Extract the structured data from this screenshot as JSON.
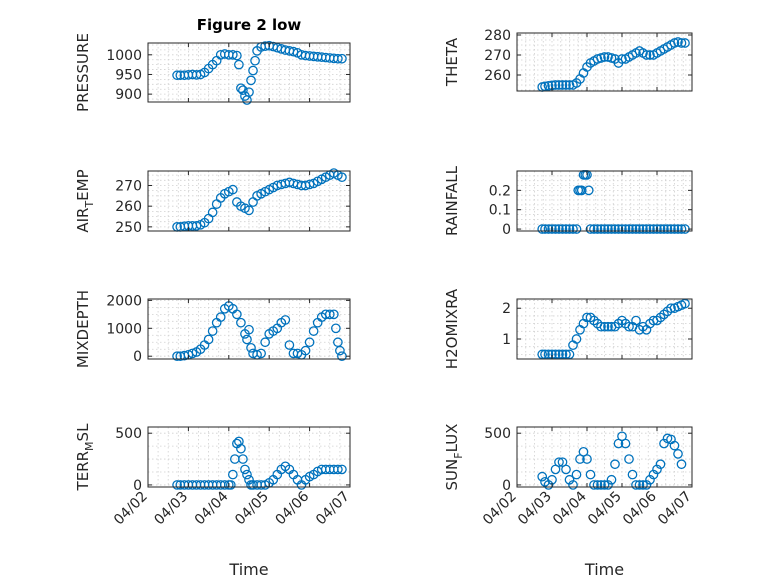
{
  "figure": {
    "title": "Figure 2 low"
  },
  "colors": {
    "marker": "#0072BD",
    "axis": "#262626",
    "grid": "#d0d0d0"
  },
  "chart_data": [
    {
      "type": "scatter",
      "title": "Figure 2 low",
      "ylabel": "PRESSURE",
      "xlim": [
        0,
        5
      ],
      "ylim": [
        880,
        1030
      ],
      "yticks": [
        900,
        950,
        1000
      ],
      "xticks": [
        0,
        1,
        2,
        3,
        4,
        5
      ],
      "xticklabels": [],
      "xlabel": "",
      "grid": true,
      "series": [
        {
          "x": [
            0.72,
            0.8,
            0.9,
            1.0,
            1.1,
            1.2,
            1.3,
            1.4,
            1.5,
            1.6,
            1.7,
            1.8,
            1.9,
            2.0,
            2.1,
            2.2,
            2.25,
            2.3,
            2.35,
            2.4,
            2.45,
            2.5,
            2.55,
            2.6,
            2.65,
            2.7,
            2.8,
            2.9,
            3.0,
            3.1,
            3.2,
            3.3,
            3.4,
            3.5,
            3.6,
            3.7,
            3.8,
            3.9,
            4.0,
            4.1,
            4.2,
            4.3,
            4.4,
            4.5,
            4.6,
            4.7,
            4.8
          ],
          "y": [
            948,
            948,
            948,
            949,
            950,
            949,
            950,
            955,
            965,
            975,
            985,
            1000,
            1002,
            1000,
            1000,
            998,
            975,
            915,
            910,
            895,
            885,
            905,
            935,
            960,
            985,
            1010,
            1020,
            1022,
            1023,
            1021,
            1018,
            1015,
            1012,
            1010,
            1008,
            1005,
            1000,
            998,
            997,
            996,
            995,
            994,
            993,
            992,
            991,
            990,
            990
          ]
        }
      ]
    },
    {
      "type": "scatter",
      "title": "",
      "ylabel": "THETA",
      "xlim": [
        0,
        5
      ],
      "ylim": [
        252,
        281
      ],
      "yticks": [
        260,
        270,
        280
      ],
      "xticks": [
        0,
        1,
        2,
        3,
        4,
        5
      ],
      "xticklabels": [],
      "xlabel": "",
      "grid": true,
      "series": [
        {
          "x": [
            0.72,
            0.8,
            0.9,
            1.0,
            1.1,
            1.2,
            1.3,
            1.4,
            1.5,
            1.6,
            1.7,
            1.8,
            1.9,
            2.0,
            2.1,
            2.2,
            2.3,
            2.4,
            2.5,
            2.6,
            2.7,
            2.8,
            2.9,
            3.0,
            3.1,
            3.2,
            3.3,
            3.4,
            3.5,
            3.6,
            3.7,
            3.8,
            3.9,
            4.0,
            4.1,
            4.2,
            4.3,
            4.4,
            4.5,
            4.6,
            4.7,
            4.8
          ],
          "y": [
            254,
            254.3,
            254.6,
            254.8,
            255,
            255,
            255,
            255,
            255,
            255,
            256,
            258,
            261,
            264,
            266,
            267,
            268,
            268.5,
            269,
            269,
            268.5,
            268,
            266,
            268,
            268,
            269,
            270,
            271,
            272,
            271,
            270,
            270,
            270,
            271,
            272,
            273,
            274,
            275,
            276,
            276.5,
            276,
            276
          ]
        }
      ]
    },
    {
      "type": "scatter",
      "title": "",
      "ylabel": "AIR_TEMP",
      "xlim": [
        0,
        5
      ],
      "ylim": [
        248,
        277
      ],
      "yticks": [
        250,
        260,
        270
      ],
      "xticks": [
        0,
        1,
        2,
        3,
        4,
        5
      ],
      "xticklabels": [],
      "xlabel": "",
      "grid": true,
      "series": [
        {
          "x": [
            0.72,
            0.8,
            0.9,
            1.0,
            1.1,
            1.2,
            1.3,
            1.4,
            1.5,
            1.6,
            1.7,
            1.8,
            1.9,
            2.0,
            2.1,
            2.2,
            2.3,
            2.4,
            2.5,
            2.6,
            2.7,
            2.8,
            2.9,
            3.0,
            3.1,
            3.2,
            3.3,
            3.4,
            3.5,
            3.6,
            3.7,
            3.8,
            3.9,
            4.0,
            4.1,
            4.2,
            4.3,
            4.4,
            4.5,
            4.6,
            4.7,
            4.8
          ],
          "y": [
            250,
            250,
            250.3,
            250.5,
            250.5,
            250.5,
            251,
            252,
            254,
            257,
            261,
            264,
            266,
            267,
            268,
            262,
            260,
            259,
            258,
            262,
            265,
            266,
            267,
            268,
            269,
            270,
            270.5,
            271,
            271.5,
            271,
            270.5,
            270,
            270,
            270.5,
            271,
            272,
            273,
            274,
            275,
            276,
            275,
            274
          ]
        }
      ]
    },
    {
      "type": "scatter",
      "title": "",
      "ylabel": "RAINFALL",
      "xlim": [
        0,
        5
      ],
      "ylim": [
        -0.01,
        0.3
      ],
      "yticks": [
        0,
        0.1,
        0.2
      ],
      "xticks": [
        0,
        1,
        2,
        3,
        4,
        5
      ],
      "xticklabels": [],
      "xlabel": "",
      "grid": true,
      "series": [
        {
          "x": [
            0.72,
            0.8,
            0.9,
            1.0,
            1.1,
            1.2,
            1.3,
            1.4,
            1.5,
            1.6,
            1.7,
            1.75,
            1.8,
            1.85,
            1.9,
            1.95,
            2.0,
            2.05,
            2.1,
            2.2,
            2.3,
            2.4,
            2.5,
            2.6,
            2.7,
            2.8,
            2.9,
            3.0,
            3.1,
            3.2,
            3.3,
            3.4,
            3.5,
            3.6,
            3.7,
            3.8,
            3.9,
            4.0,
            4.1,
            4.2,
            4.3,
            4.4,
            4.5,
            4.6,
            4.7,
            4.8
          ],
          "y": [
            0,
            0,
            0,
            0,
            0,
            0,
            0,
            0,
            0,
            0,
            0,
            0.2,
            0.2,
            0.2,
            0.28,
            0.28,
            0.28,
            0.2,
            0,
            0,
            0,
            0,
            0,
            0,
            0,
            0,
            0,
            0,
            0,
            0,
            0,
            0,
            0,
            0,
            0,
            0,
            0,
            0,
            0,
            0,
            0,
            0,
            0,
            0,
            0,
            0
          ]
        }
      ]
    },
    {
      "type": "scatter",
      "title": "",
      "ylabel": "MIXDEPTH",
      "xlim": [
        0,
        5
      ],
      "ylim": [
        -100,
        2050
      ],
      "yticks": [
        0,
        1000,
        2000
      ],
      "xticks": [
        0,
        1,
        2,
        3,
        4,
        5
      ],
      "xticklabels": [],
      "xlabel": "",
      "grid": true,
      "series": [
        {
          "x": [
            0.72,
            0.8,
            0.9,
            1.0,
            1.1,
            1.2,
            1.3,
            1.4,
            1.5,
            1.6,
            1.7,
            1.8,
            1.9,
            2.0,
            2.1,
            2.2,
            2.3,
            2.4,
            2.45,
            2.5,
            2.55,
            2.6,
            2.7,
            2.8,
            2.9,
            3.0,
            3.1,
            3.2,
            3.3,
            3.4,
            3.5,
            3.6,
            3.7,
            3.8,
            3.9,
            4.0,
            4.1,
            4.2,
            4.3,
            4.4,
            4.5,
            4.6,
            4.65,
            4.7,
            4.75,
            4.8
          ],
          "y": [
            0,
            0,
            20,
            50,
            100,
            150,
            250,
            400,
            600,
            900,
            1200,
            1400,
            1700,
            1800,
            1700,
            1500,
            1200,
            800,
            600,
            950,
            300,
            100,
            50,
            100,
            500,
            800,
            900,
            1000,
            1200,
            1300,
            400,
            100,
            100,
            50,
            200,
            500,
            900,
            1200,
            1400,
            1500,
            1500,
            1500,
            1000,
            500,
            200,
            0
          ]
        }
      ]
    },
    {
      "type": "scatter",
      "title": "",
      "ylabel": "H2OMIXRA",
      "xlim": [
        0,
        5
      ],
      "ylim": [
        0.35,
        2.3
      ],
      "yticks": [
        1,
        2
      ],
      "xticks": [
        0,
        1,
        2,
        3,
        4,
        5
      ],
      "xticklabels": [],
      "xlabel": "",
      "grid": true,
      "series": [
        {
          "x": [
            0.72,
            0.8,
            0.9,
            1.0,
            1.1,
            1.2,
            1.3,
            1.4,
            1.5,
            1.6,
            1.7,
            1.8,
            1.9,
            2.0,
            2.1,
            2.2,
            2.3,
            2.4,
            2.5,
            2.6,
            2.7,
            2.8,
            2.9,
            3.0,
            3.1,
            3.2,
            3.3,
            3.4,
            3.5,
            3.6,
            3.7,
            3.8,
            3.9,
            4.0,
            4.1,
            4.2,
            4.3,
            4.4,
            4.5,
            4.6,
            4.7,
            4.8
          ],
          "y": [
            0.5,
            0.5,
            0.5,
            0.5,
            0.5,
            0.5,
            0.5,
            0.5,
            0.5,
            0.8,
            1.0,
            1.3,
            1.5,
            1.7,
            1.7,
            1.6,
            1.5,
            1.4,
            1.4,
            1.4,
            1.4,
            1.4,
            1.5,
            1.6,
            1.5,
            1.4,
            1.4,
            1.6,
            1.3,
            1.4,
            1.3,
            1.5,
            1.6,
            1.6,
            1.7,
            1.8,
            1.9,
            2.0,
            2.0,
            2.05,
            2.1,
            2.15
          ]
        }
      ]
    },
    {
      "type": "scatter",
      "title": "",
      "ylabel": "TERR_MSL",
      "xlim": [
        0,
        5
      ],
      "ylim": [
        -20,
        560
      ],
      "yticks": [
        0,
        500
      ],
      "xticks": [
        0,
        1,
        2,
        3,
        4,
        5
      ],
      "xticklabels": [
        "04/02",
        "04/03",
        "04/04",
        "04/05",
        "04/06",
        "04/07"
      ],
      "xlabel": "Time",
      "grid": true,
      "series": [
        {
          "x": [
            0.72,
            0.8,
            0.9,
            1.0,
            1.1,
            1.2,
            1.3,
            1.4,
            1.5,
            1.6,
            1.7,
            1.8,
            1.9,
            2.0,
            2.05,
            2.1,
            2.15,
            2.2,
            2.25,
            2.3,
            2.35,
            2.4,
            2.45,
            2.5,
            2.55,
            2.6,
            2.7,
            2.8,
            2.9,
            3.0,
            3.1,
            3.2,
            3.3,
            3.4,
            3.5,
            3.6,
            3.7,
            3.8,
            3.9,
            4.0,
            4.1,
            4.2,
            4.3,
            4.4,
            4.5,
            4.6,
            4.7,
            4.8
          ],
          "y": [
            0,
            0,
            0,
            0,
            0,
            0,
            0,
            0,
            0,
            0,
            0,
            0,
            0,
            0,
            0,
            100,
            250,
            400,
            420,
            350,
            250,
            150,
            100,
            50,
            0,
            0,
            0,
            0,
            0,
            20,
            50,
            100,
            150,
            180,
            150,
            100,
            50,
            0,
            50,
            80,
            100,
            130,
            150,
            150,
            150,
            150,
            150,
            150
          ]
        }
      ]
    },
    {
      "type": "scatter",
      "title": "",
      "ylabel": "SUN_FLUX",
      "xlim": [
        0,
        5
      ],
      "ylim": [
        -20,
        560
      ],
      "yticks": [
        0,
        500
      ],
      "xticks": [
        0,
        1,
        2,
        3,
        4,
        5
      ],
      "xticklabels": [
        "04/02",
        "04/03",
        "04/04",
        "04/05",
        "04/06",
        "04/07"
      ],
      "xlabel": "Time",
      "grid": true,
      "series": [
        {
          "x": [
            0.72,
            0.8,
            0.9,
            1.0,
            1.1,
            1.2,
            1.3,
            1.4,
            1.5,
            1.6,
            1.7,
            1.8,
            1.9,
            2.0,
            2.1,
            2.2,
            2.3,
            2.4,
            2.5,
            2.6,
            2.7,
            2.8,
            2.9,
            3.0,
            3.1,
            3.2,
            3.3,
            3.4,
            3.5,
            3.6,
            3.7,
            3.8,
            3.9,
            4.0,
            4.1,
            4.2,
            4.3,
            4.4,
            4.5,
            4.6,
            4.7
          ],
          "y": [
            80,
            30,
            0,
            50,
            150,
            220,
            220,
            150,
            50,
            0,
            100,
            250,
            320,
            250,
            100,
            0,
            0,
            0,
            0,
            0,
            50,
            200,
            400,
            470,
            400,
            250,
            100,
            0,
            0,
            0,
            0,
            50,
            100,
            150,
            200,
            400,
            450,
            440,
            380,
            300,
            200
          ]
        }
      ]
    }
  ]
}
